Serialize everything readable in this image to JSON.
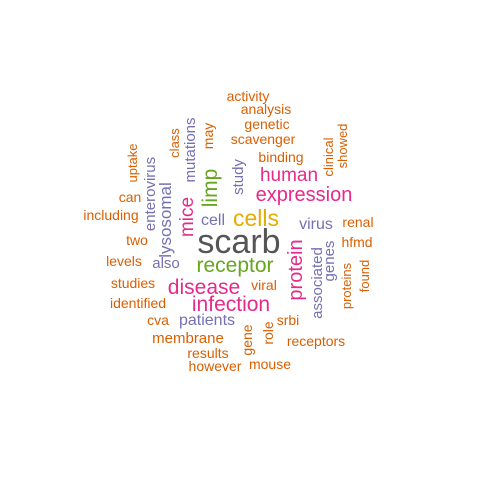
{
  "palette": {
    "orange": "#d95f02",
    "purple": "#7570b3",
    "magenta": "#e7298a",
    "green": "#66a61e",
    "gold": "#e6ab02",
    "gray": "#555555"
  },
  "words": [
    {
      "text": "scarb",
      "color": "gray"
    },
    {
      "text": "cells",
      "color": "gold"
    },
    {
      "text": "receptor",
      "color": "green"
    },
    {
      "text": "infection",
      "color": "magenta"
    },
    {
      "text": "disease",
      "color": "magenta"
    },
    {
      "text": "expression",
      "color": "magenta"
    },
    {
      "text": "human",
      "color": "magenta"
    },
    {
      "text": "limp",
      "color": "green"
    },
    {
      "text": "protein",
      "color": "magenta"
    },
    {
      "text": "mice",
      "color": "magenta"
    },
    {
      "text": "lysosomal",
      "color": "purple"
    },
    {
      "text": "enterovirus",
      "color": "purple"
    },
    {
      "text": "mutations",
      "color": "purple"
    },
    {
      "text": "associated",
      "color": "purple"
    },
    {
      "text": "genes",
      "color": "purple"
    },
    {
      "text": "patients",
      "color": "purple"
    },
    {
      "text": "virus",
      "color": "purple"
    },
    {
      "text": "study",
      "color": "purple"
    },
    {
      "text": "cell",
      "color": "purple"
    },
    {
      "text": "also",
      "color": "purple"
    },
    {
      "text": "class",
      "color": "orange"
    },
    {
      "text": "uptake",
      "color": "orange"
    },
    {
      "text": "may",
      "color": "orange"
    },
    {
      "text": "activity",
      "color": "orange"
    },
    {
      "text": "analysis",
      "color": "orange"
    },
    {
      "text": "genetic",
      "color": "orange"
    },
    {
      "text": "scavenger",
      "color": "orange"
    },
    {
      "text": "binding",
      "color": "orange"
    },
    {
      "text": "clinical",
      "color": "orange"
    },
    {
      "text": "showed",
      "color": "orange"
    },
    {
      "text": "can",
      "color": "orange"
    },
    {
      "text": "including",
      "color": "orange"
    },
    {
      "text": "renal",
      "color": "orange"
    },
    {
      "text": "two",
      "color": "orange"
    },
    {
      "text": "hfmd",
      "color": "orange"
    },
    {
      "text": "levels",
      "color": "orange"
    },
    {
      "text": "proteins",
      "color": "orange"
    },
    {
      "text": "found",
      "color": "orange"
    },
    {
      "text": "studies",
      "color": "orange"
    },
    {
      "text": "viral",
      "color": "orange"
    },
    {
      "text": "identified",
      "color": "orange"
    },
    {
      "text": "cva",
      "color": "orange"
    },
    {
      "text": "srbi",
      "color": "orange"
    },
    {
      "text": "role",
      "color": "orange"
    },
    {
      "text": "gene",
      "color": "orange"
    },
    {
      "text": "membrane",
      "color": "orange"
    },
    {
      "text": "receptors",
      "color": "orange"
    },
    {
      "text": "results",
      "color": "orange"
    },
    {
      "text": "however",
      "color": "orange"
    },
    {
      "text": "mouse",
      "color": "orange"
    }
  ]
}
